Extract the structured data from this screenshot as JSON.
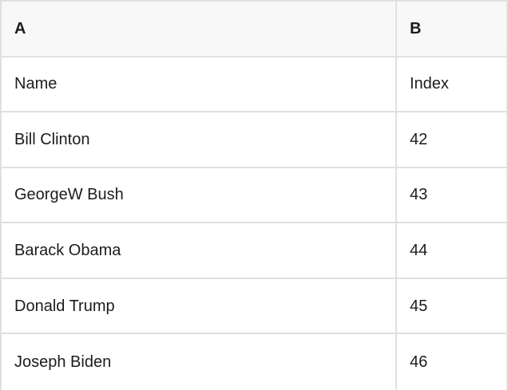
{
  "table": {
    "columns": [
      {
        "key": "A",
        "label": "A"
      },
      {
        "key": "B",
        "label": "B"
      }
    ],
    "rows": [
      {
        "cells": [
          "Name",
          "Index"
        ]
      },
      {
        "cells": [
          "Bill Clinton",
          "42"
        ]
      },
      {
        "cells": [
          "GeorgeW Bush",
          "43"
        ]
      },
      {
        "cells": [
          "Barack Obama",
          "44"
        ]
      },
      {
        "cells": [
          "Donald Trump",
          "45"
        ]
      },
      {
        "cells": [
          "Joseph Biden",
          "46"
        ]
      }
    ]
  },
  "colors": {
    "border": "#e0e0e0",
    "header_bg": "#f8f8f8",
    "row_bg": "#ffffff",
    "text": "#1c1c1e"
  }
}
